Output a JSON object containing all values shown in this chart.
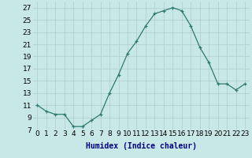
{
  "x": [
    0,
    1,
    2,
    3,
    4,
    5,
    6,
    7,
    8,
    9,
    10,
    11,
    12,
    13,
    14,
    15,
    16,
    17,
    18,
    19,
    20,
    21,
    22,
    23
  ],
  "y": [
    11,
    10,
    9.5,
    9.5,
    7.5,
    7.5,
    8.5,
    9.5,
    13,
    16,
    19.5,
    21.5,
    24,
    26,
    26.5,
    27,
    26.5,
    24,
    20.5,
    18,
    14.5,
    14.5,
    13.5,
    14.5
  ],
  "xlabel": "Humidex (Indice chaleur)",
  "ylim": [
    7,
    28
  ],
  "xlim": [
    -0.5,
    23.5
  ],
  "yticks": [
    7,
    9,
    11,
    13,
    15,
    17,
    19,
    21,
    23,
    25,
    27
  ],
  "xtick_labels": [
    "0",
    "1",
    "2",
    "3",
    "4",
    "5",
    "6",
    "7",
    "8",
    "9",
    "10",
    "11",
    "12",
    "13",
    "14",
    "15",
    "16",
    "17",
    "18",
    "19",
    "20",
    "21",
    "22",
    "23"
  ],
  "line_color": "#2d7a6e",
  "marker": "+",
  "bg_color": "#c8e8e8",
  "grid_color": "#b0cccc",
  "xlabel_color": "#000080",
  "xlabel_fontsize": 7,
  "tick_fontsize": 6.5,
  "marker_size": 3,
  "linewidth": 0.9
}
